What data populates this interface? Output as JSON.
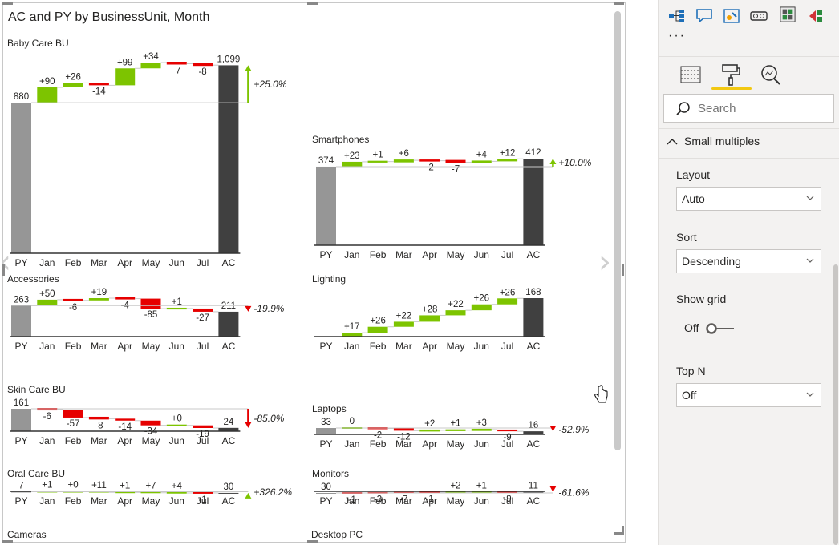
{
  "visual": {
    "title": "AC and PY by BusinessUnit, Month"
  },
  "chart_data": [
    {
      "type": "bar",
      "chart_subtype": "waterfall",
      "title": "Baby Care BU",
      "categories": [
        "PY",
        "Jan",
        "Feb",
        "Mar",
        "Apr",
        "May",
        "Jun",
        "Jul",
        "AC"
      ],
      "start": 880,
      "deltas": [
        90,
        26,
        -14,
        99,
        34,
        -7,
        -8
      ],
      "end": 1099,
      "value_labels": [
        "880",
        "+90",
        "+26",
        "-14",
        "+99",
        "+34",
        "-7",
        "-8",
        "1,099"
      ],
      "variance_label": "+25.0%",
      "variance_direction": "up"
    },
    {
      "type": "bar",
      "chart_subtype": "waterfall",
      "title": "Smartphones",
      "categories": [
        "PY",
        "Jan",
        "Feb",
        "Mar",
        "Apr",
        "May",
        "Jun",
        "Jul",
        "AC"
      ],
      "start": 374,
      "deltas": [
        23,
        1,
        6,
        -2,
        -7,
        4,
        12
      ],
      "end": 412,
      "value_labels": [
        "374",
        "+23",
        "+1",
        "+6",
        "-2",
        "-7",
        "+4",
        "+12",
        "412"
      ],
      "variance_label": "+10.0%",
      "variance_direction": "up"
    },
    {
      "type": "bar",
      "chart_subtype": "waterfall",
      "title": "Accessories",
      "categories": [
        "PY",
        "Jan",
        "Feb",
        "Mar",
        "Apr",
        "May",
        "Jun",
        "Jul",
        "AC"
      ],
      "start": 263,
      "deltas": [
        50,
        -6,
        19,
        -4,
        -85,
        1,
        -27
      ],
      "end": 211,
      "value_labels": [
        "263",
        "+50",
        "-6",
        "+19",
        "-4",
        "-85",
        "+1",
        "-27",
        "211"
      ],
      "variance_label": "-19.9%",
      "variance_direction": "down"
    },
    {
      "type": "bar",
      "chart_subtype": "waterfall",
      "title": "Lighting",
      "categories": [
        "PY",
        "Jan",
        "Feb",
        "Mar",
        "Apr",
        "May",
        "Jun",
        "Jul",
        "AC"
      ],
      "start": 0,
      "deltas": [
        17,
        26,
        22,
        28,
        22,
        26,
        26
      ],
      "end": 168,
      "value_labels": [
        "",
        "+17",
        "+26",
        "+22",
        "+28",
        "+22",
        "+26",
        "+26",
        "168"
      ],
      "variance_label": "",
      "variance_direction": ""
    },
    {
      "type": "bar",
      "chart_subtype": "waterfall",
      "title": "Skin Care BU",
      "categories": [
        "PY",
        "Jan",
        "Feb",
        "Mar",
        "Apr",
        "May",
        "Jun",
        "Jul",
        "AC"
      ],
      "start": 161,
      "deltas": [
        -6,
        -57,
        -8,
        -14,
        -34,
        0,
        -19
      ],
      "end": 24,
      "value_labels": [
        "161",
        "-6",
        "-57",
        "-8",
        "-14",
        "-34",
        "+0",
        "-19",
        "24"
      ],
      "variance_label": "-85.0%",
      "variance_direction": "down"
    },
    {
      "type": "bar",
      "chart_subtype": "waterfall",
      "title": "Laptops",
      "categories": [
        "PY",
        "Jan",
        "Feb",
        "Mar",
        "Apr",
        "May",
        "Jun",
        "Jul",
        "AC"
      ],
      "start": 33,
      "deltas": [
        0,
        -2,
        -12,
        2,
        1,
        3,
        -9
      ],
      "end": 16,
      "value_labels": [
        "33",
        "0",
        "-2",
        "-12",
        "+2",
        "+1",
        "+3",
        "-9",
        "16"
      ],
      "variance_label": "-52.9%",
      "variance_direction": "down"
    },
    {
      "type": "bar",
      "chart_subtype": "waterfall",
      "title": "Oral Care BU",
      "categories": [
        "PY",
        "Jan",
        "Feb",
        "Mar",
        "Apr",
        "May",
        "Jun",
        "Jul",
        "AC"
      ],
      "start": 7,
      "deltas": [
        1,
        0,
        11,
        1,
        7,
        4,
        -1
      ],
      "end": 30,
      "value_labels": [
        "7",
        "+1",
        "+0",
        "+11",
        "+1",
        "+7",
        "+4",
        "-1",
        "30"
      ],
      "variance_label": "+326.2%",
      "variance_direction": "up"
    },
    {
      "type": "bar",
      "chart_subtype": "waterfall",
      "title": "Monitors",
      "categories": [
        "PY",
        "Jan",
        "Feb",
        "Mar",
        "Apr",
        "May",
        "Jun",
        "Jul",
        "AC"
      ],
      "start": 30,
      "deltas": [
        -1,
        -3,
        -7,
        -1,
        2,
        1,
        -9
      ],
      "end": 11,
      "value_labels": [
        "30",
        "-1",
        "-3",
        "-7",
        "-1",
        "+2",
        "+1",
        "-9",
        "11"
      ],
      "variance_label": "-61.6%",
      "variance_direction": "down"
    }
  ],
  "partial_titles": [
    "Cameras",
    "Desktop PC"
  ],
  "colors": {
    "py": "#969696",
    "ac": "#404040",
    "positive": "#7dc400",
    "negative": "#e60000",
    "connector": "#c8c8c8",
    "axis": "#333333"
  },
  "pane": {
    "search_placeholder": "Search",
    "section": "Small multiples",
    "layout": {
      "label": "Layout",
      "value": "Auto"
    },
    "sort": {
      "label": "Sort",
      "value": "Descending"
    },
    "show_grid": {
      "label": "Show grid",
      "state": "Off"
    },
    "topn": {
      "label": "Top N",
      "value": "Off"
    },
    "more_label": "···"
  }
}
